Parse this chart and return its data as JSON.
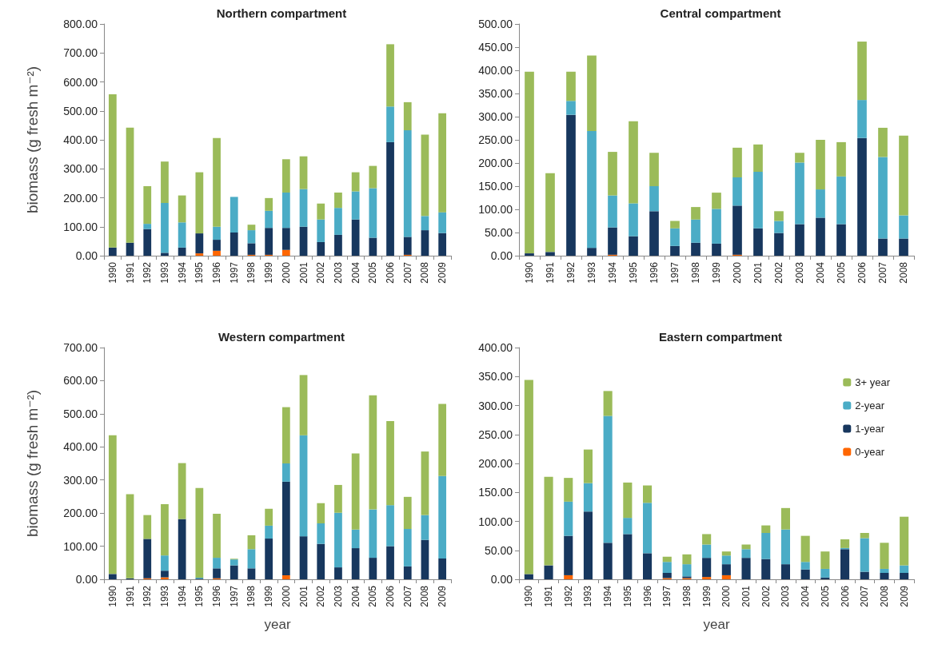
{
  "chart_data": [
    {
      "type": "bar",
      "title": "Northern compartment",
      "ylabel": "biomass (g fresh m⁻²)",
      "stacked": true,
      "grid": false,
      "legend": false,
      "categories": [
        "1990",
        "1991",
        "1992",
        "1993",
        "1994",
        "1995",
        "1996",
        "1997",
        "1998",
        "1999",
        "2000",
        "2001",
        "2002",
        "2003",
        "2004",
        "2005",
        "2006",
        "2007",
        "2008",
        "2009"
      ],
      "ylim": [
        0,
        800
      ],
      "yticks": [
        {
          "value": 0,
          "label": "0.00"
        },
        {
          "value": 100,
          "label": "100.00"
        },
        {
          "value": 200,
          "label": "200.00"
        },
        {
          "value": 300,
          "label": "300.00"
        },
        {
          "value": 400,
          "label": "400.00"
        },
        {
          "value": 500,
          "label": "500.00"
        },
        {
          "value": 600,
          "label": "600.00"
        },
        {
          "value": 700,
          "label": "700.00"
        },
        {
          "value": 800,
          "label": "800.00"
        }
      ],
      "series": [
        {
          "color": "#ff6600",
          "values": [
            0,
            0,
            0,
            0,
            0,
            8,
            17,
            0,
            3,
            3,
            20,
            0,
            0,
            0,
            0,
            0,
            0,
            3,
            0,
            0
          ]
        },
        {
          "color": "#17375e",
          "values": [
            28,
            45,
            92,
            10,
            28,
            69,
            38,
            80,
            40,
            93,
            76,
            100,
            47,
            72,
            125,
            62,
            392,
            62,
            88,
            78
          ]
        },
        {
          "color": "#4bacc6",
          "values": [
            0,
            0,
            18,
            172,
            87,
            0,
            45,
            123,
            45,
            59,
            122,
            130,
            78,
            93,
            97,
            171,
            123,
            368,
            49,
            72
          ]
        },
        {
          "color": "#9bbb59",
          "values": [
            529,
            397,
            130,
            143,
            93,
            211,
            306,
            0,
            19,
            44,
            115,
            113,
            55,
            53,
            66,
            77,
            215,
            97,
            281,
            342
          ]
        }
      ]
    },
    {
      "type": "bar",
      "title": "Central compartment",
      "stacked": true,
      "grid": false,
      "legend": false,
      "categories": [
        "1990",
        "1991",
        "1992",
        "1993",
        "1994",
        "1995",
        "1996",
        "1997",
        "1998",
        "1999",
        "2000",
        "2001",
        "2002",
        "2003",
        "2004",
        "2005",
        "2006",
        "2007",
        "2008"
      ],
      "ylim": [
        0,
        500
      ],
      "yticks": [
        {
          "value": 0,
          "label": "0.00"
        },
        {
          "value": 50,
          "label": "50.00"
        },
        {
          "value": 100,
          "label": "100.00"
        },
        {
          "value": 150,
          "label": "150.00"
        },
        {
          "value": 200,
          "label": "200.00"
        },
        {
          "value": 250,
          "label": "250.00"
        },
        {
          "value": 300,
          "label": "300.00"
        },
        {
          "value": 350,
          "label": "350.00"
        },
        {
          "value": 400,
          "label": "400.00"
        },
        {
          "value": 450,
          "label": "450.00"
        },
        {
          "value": 500,
          "label": "500.00"
        }
      ],
      "series": [
        {
          "color": "#ff6600",
          "values": [
            0,
            0,
            0,
            0,
            2,
            0,
            0,
            0,
            0,
            0,
            2,
            0,
            0,
            0,
            0,
            0,
            0,
            0,
            0
          ]
        },
        {
          "color": "#17375e",
          "values": [
            5,
            8,
            304,
            17,
            59,
            42,
            96,
            21,
            28,
            26,
            106,
            59,
            49,
            68,
            82,
            68,
            254,
            37,
            37
          ]
        },
        {
          "color": "#4bacc6",
          "values": [
            0,
            0,
            30,
            252,
            69,
            71,
            54,
            38,
            50,
            75,
            61,
            122,
            26,
            133,
            61,
            103,
            82,
            176,
            50
          ]
        },
        {
          "color": "#9bbb59",
          "values": [
            392,
            170,
            63,
            163,
            94,
            177,
            72,
            16,
            27,
            35,
            64,
            59,
            21,
            21,
            107,
            74,
            126,
            63,
            172
          ]
        }
      ]
    },
    {
      "type": "bar",
      "title": "Western compartment",
      "xlabel": "year",
      "ylabel": "biomass (g fresh m⁻²)",
      "stacked": true,
      "grid": false,
      "legend": false,
      "categories": [
        "1990",
        "1991",
        "1992",
        "1993",
        "1994",
        "1995",
        "1996",
        "1997",
        "1998",
        "1999",
        "2000",
        "2001",
        "2002",
        "2003",
        "2004",
        "2005",
        "2006",
        "2007",
        "2008",
        "2009"
      ],
      "ylim": [
        0,
        700
      ],
      "yticks": [
        {
          "value": 0,
          "label": "0.00"
        },
        {
          "value": 100,
          "label": "100.00"
        },
        {
          "value": 200,
          "label": "200.00"
        },
        {
          "value": 300,
          "label": "300.00"
        },
        {
          "value": 400,
          "label": "400.00"
        },
        {
          "value": 500,
          "label": "500.00"
        },
        {
          "value": 600,
          "label": "600.00"
        },
        {
          "value": 700,
          "label": "700.00"
        }
      ],
      "series": [
        {
          "color": "#ff6600",
          "values": [
            0,
            0,
            3,
            6,
            0,
            0,
            3,
            0,
            0,
            0,
            12,
            0,
            0,
            0,
            0,
            0,
            0,
            0,
            0,
            0
          ]
        },
        {
          "color": "#17375e",
          "values": [
            16,
            3,
            119,
            20,
            182,
            2,
            30,
            42,
            33,
            123,
            283,
            130,
            107,
            36,
            94,
            65,
            100,
            39,
            119,
            63
          ]
        },
        {
          "color": "#4bacc6",
          "values": [
            0,
            0,
            0,
            46,
            0,
            3,
            32,
            18,
            58,
            39,
            55,
            305,
            62,
            165,
            56,
            146,
            124,
            113,
            75,
            249
          ]
        },
        {
          "color": "#9bbb59",
          "values": [
            419,
            254,
            72,
            155,
            169,
            271,
            133,
            2,
            42,
            51,
            170,
            182,
            61,
            84,
            230,
            345,
            254,
            97,
            192,
            218
          ]
        }
      ]
    },
    {
      "type": "bar",
      "title": "Eastern compartment",
      "xlabel": "year",
      "stacked": true,
      "grid": false,
      "legend": "top right",
      "categories": [
        "1990",
        "1991",
        "1992",
        "1993",
        "1994",
        "1995",
        "1996",
        "1997",
        "1998",
        "1999",
        "2000",
        "2001",
        "2002",
        "2003",
        "2004",
        "2005",
        "2006",
        "2007",
        "2008",
        "2009"
      ],
      "ylim": [
        0,
        400
      ],
      "yticks": [
        {
          "value": 0,
          "label": "0.00"
        },
        {
          "value": 50,
          "label": "50.00"
        },
        {
          "value": 100,
          "label": "100.00"
        },
        {
          "value": 150,
          "label": "150.00"
        },
        {
          "value": 200,
          "label": "200.00"
        },
        {
          "value": 250,
          "label": "250.00"
        },
        {
          "value": 300,
          "label": "300.00"
        },
        {
          "value": 350,
          "label": "350.00"
        },
        {
          "value": 400,
          "label": "400.00"
        }
      ],
      "series": [
        {
          "name": "0-year",
          "color": "#ff6600",
          "values": [
            0,
            0,
            7,
            0,
            0,
            0,
            0,
            2,
            2,
            4,
            7,
            0,
            0,
            0,
            0,
            0,
            0,
            0,
            0,
            0
          ]
        },
        {
          "name": "1-year",
          "color": "#17375e",
          "values": [
            9,
            24,
            68,
            117,
            63,
            78,
            45,
            9,
            3,
            33,
            19,
            37,
            35,
            26,
            17,
            3,
            52,
            13,
            11,
            11
          ]
        },
        {
          "name": "2-year",
          "color": "#4bacc6",
          "values": [
            0,
            0,
            59,
            49,
            219,
            28,
            87,
            19,
            21,
            23,
            15,
            15,
            45,
            60,
            13,
            15,
            2,
            58,
            7,
            13
          ]
        },
        {
          "name": "3+ year",
          "color": "#9bbb59",
          "values": [
            335,
            153,
            41,
            58,
            43,
            61,
            30,
            9,
            17,
            18,
            7,
            8,
            13,
            37,
            45,
            30,
            15,
            9,
            45,
            84
          ]
        }
      ]
    }
  ]
}
